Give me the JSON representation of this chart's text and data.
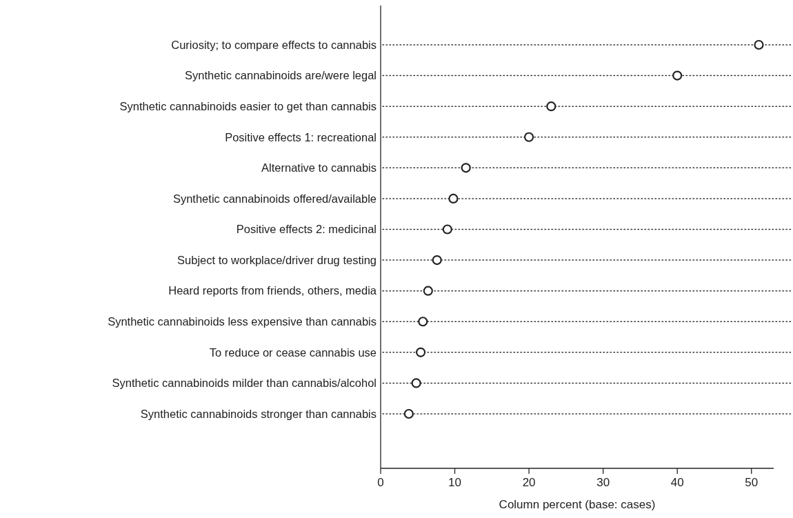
{
  "chart_data": {
    "type": "scatter",
    "xlabel": "Column percent (base: cases)",
    "categories": [
      "Curiosity; to compare effects to cannabis",
      "Synthetic cannabinoids are/were legal",
      "Synthetic cannabinoids easier to get than cannabis",
      "Positive effects 1: recreational",
      "Alternative to cannabis",
      "Synthetic cannabinoids offered/available",
      "Positive effects 2: medicinal",
      "Subject to workplace/driver drug testing",
      "Heard reports from friends, others, media",
      "Synthetic cannabinoids less expensive than cannabis",
      "To reduce or cease cannabis use",
      "Synthetic cannabinoids milder than cannabis/alcohol",
      "Synthetic cannabinoids stronger than cannabis"
    ],
    "orientation": "horizontal",
    "values": [
      51,
      40,
      23,
      20,
      11.5,
      9.8,
      9,
      7.6,
      6.4,
      5.7,
      5.4,
      4.8,
      3.8
    ],
    "color": "#222222",
    "marker": "circle",
    "grid": "y",
    "line_style": "dotted",
    "xlim": [
      0,
      53
    ],
    "xticks": [
      0,
      10,
      20,
      30,
      40,
      50
    ]
  }
}
